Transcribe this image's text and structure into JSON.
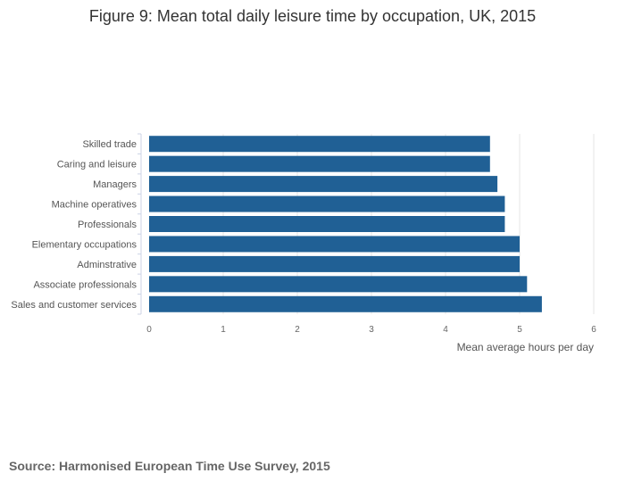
{
  "chart_data": {
    "type": "bar",
    "orientation": "horizontal",
    "title": "Figure 9: Mean total daily leisure time by occupation, UK, 2015",
    "categories": [
      "Skilled trade",
      "Caring and leisure",
      "Managers",
      "Machine operatives",
      "Professionals",
      "Elementary occupations",
      "Adminstrative",
      "Associate professionals",
      "Sales and customer services"
    ],
    "values": [
      4.6,
      4.6,
      4.7,
      4.8,
      4.8,
      5.0,
      5.0,
      5.1,
      5.3
    ],
    "xlabel": "Mean average hours per day",
    "ylabel": "",
    "xlim": [
      0,
      6
    ],
    "xticks": [
      "0",
      "1",
      "2",
      "3",
      "4",
      "5",
      "6"
    ],
    "grid": true,
    "bar_color": "#206095"
  },
  "source": "Source: Harmonised European Time Use Survey, 2015"
}
